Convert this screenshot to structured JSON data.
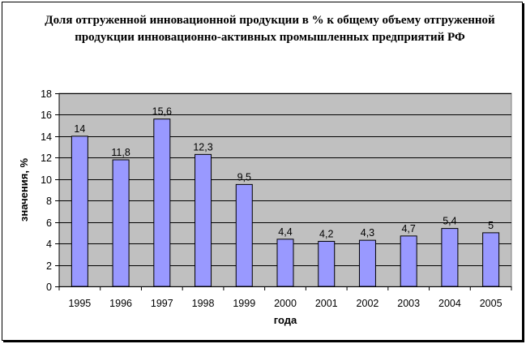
{
  "chart_data": {
    "type": "bar",
    "title": "Доля отгруженной инновационной продукции в % к общему объему отгруженной продукции инновационно-активных промышленных предприятий РФ",
    "xlabel": "года",
    "ylabel": "значения, %",
    "categories": [
      "1995",
      "1996",
      "1997",
      "1998",
      "1999",
      "2000",
      "2001",
      "2002",
      "2003",
      "2004",
      "2005"
    ],
    "values": [
      14,
      11.8,
      15.6,
      12.3,
      9.5,
      4.4,
      4.2,
      4.3,
      4.7,
      5.4,
      5
    ],
    "data_labels": [
      "14",
      "11,8",
      "15,6",
      "12,3",
      "9,5",
      "4,4",
      "4,2",
      "4,3",
      "4,7",
      "5,4",
      "5"
    ],
    "ylim": [
      0,
      18
    ],
    "yticks": [
      "0",
      "2",
      "4",
      "6",
      "8",
      "10",
      "12",
      "14",
      "16",
      "18"
    ],
    "grid": true,
    "colors": {
      "bar": "#9999ff",
      "bar_edge": "#000000",
      "plot_bg": "#c0c0c0"
    }
  }
}
